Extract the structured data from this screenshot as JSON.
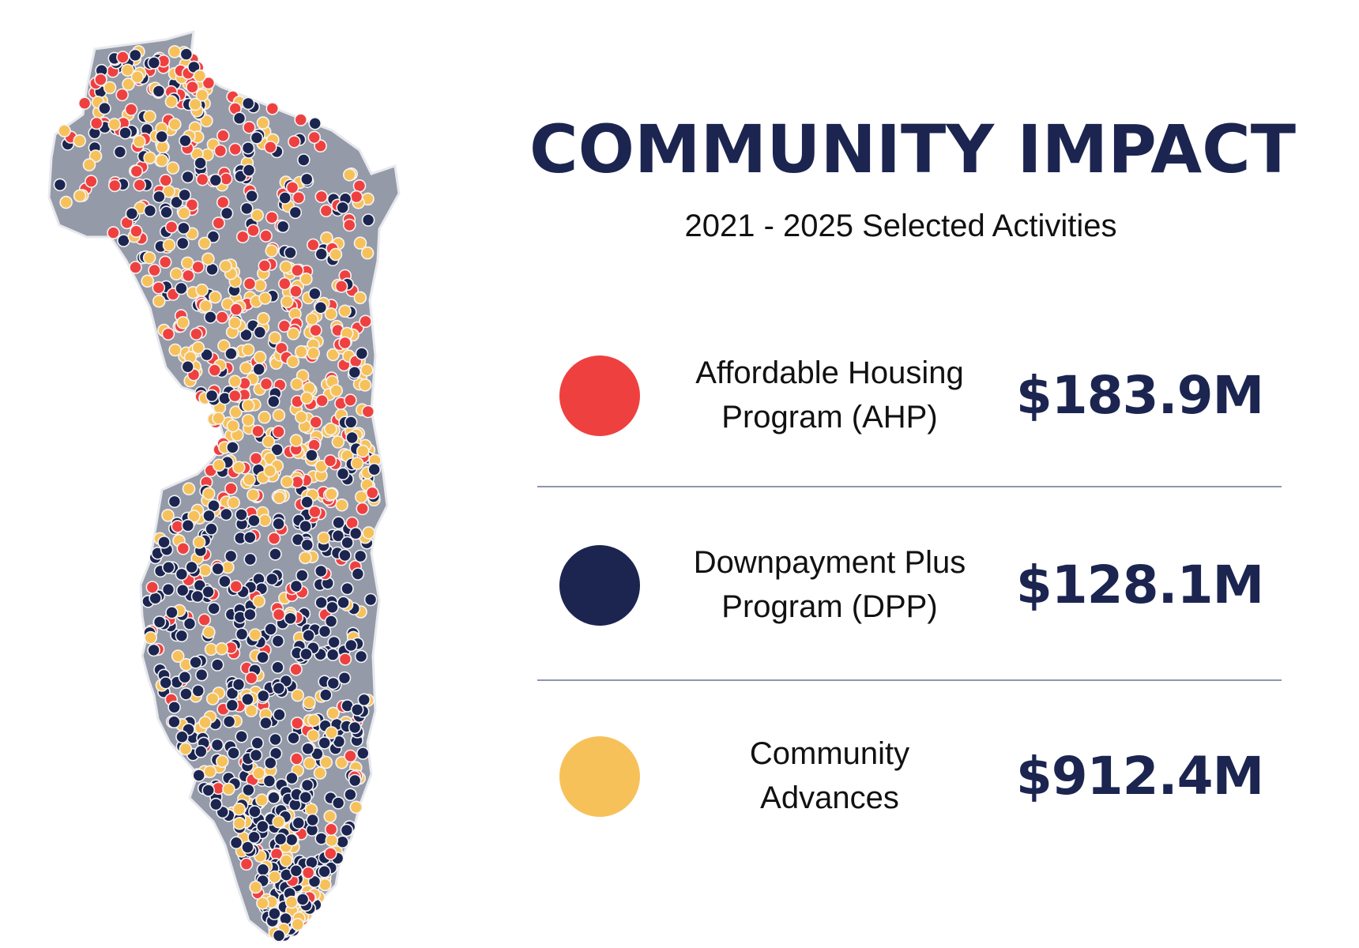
{
  "header": {
    "title": "COMMUNITY IMPACT",
    "subtitle": "2021 - 2025 Selected Activities"
  },
  "legend": [
    {
      "label": "Affordable Housing\nProgram (AHP)",
      "amount": "$183.9M",
      "color": "#ef4040"
    },
    {
      "label": "Downpayment Plus\nProgram (DPP)",
      "amount": "$128.1M",
      "color": "#1b2550"
    },
    {
      "label": "Community\nAdvances",
      "amount": "$912.4M",
      "color": "#f7c15a"
    }
  ],
  "map": {
    "region_color": "#959aa8",
    "marker_outline": "#f4f4f4"
  }
}
